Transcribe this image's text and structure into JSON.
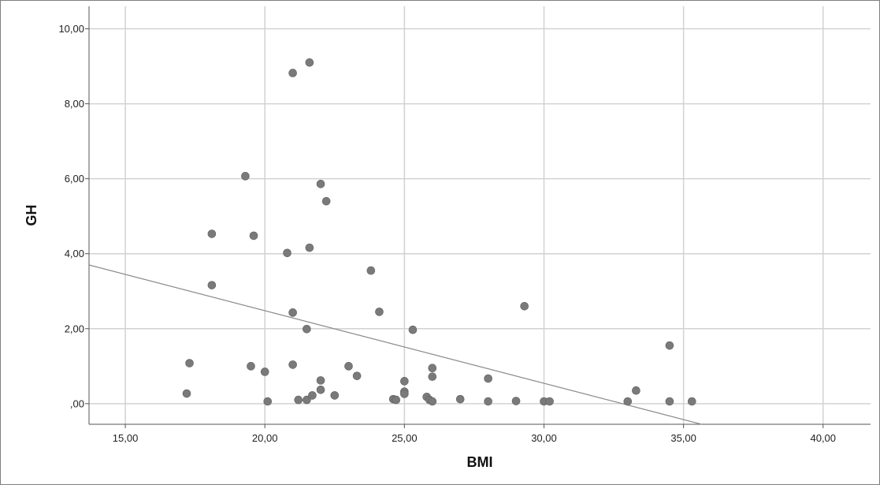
{
  "chart_data": {
    "type": "scatter",
    "title": "",
    "xlabel": "BMI",
    "ylabel": "GH",
    "xlim": [
      13.7,
      41.7
    ],
    "ylim": [
      -0.55,
      10.6
    ],
    "x_ticks": [
      15,
      20,
      25,
      30,
      35,
      40
    ],
    "y_ticks": [
      0,
      2,
      4,
      6,
      8,
      10
    ],
    "x_tick_labels": [
      "15,00",
      "20,00",
      "25,00",
      "30,00",
      "35,00",
      "40,00"
    ],
    "y_tick_labels": [
      ",00",
      "2,00",
      "4,00",
      "6,00",
      "8,00",
      "10,00"
    ],
    "grid": true,
    "point_color": "#7a7a7a",
    "line_color": "#8a8a8a",
    "fit_line": {
      "x": [
        13.7,
        35.65
      ],
      "y": [
        3.7,
        -0.55
      ]
    },
    "points": [
      {
        "x": 17.2,
        "y": 0.27
      },
      {
        "x": 17.3,
        "y": 1.08
      },
      {
        "x": 18.1,
        "y": 4.53
      },
      {
        "x": 18.1,
        "y": 3.16
      },
      {
        "x": 19.3,
        "y": 6.07
      },
      {
        "x": 19.5,
        "y": 1.0
      },
      {
        "x": 19.6,
        "y": 4.48
      },
      {
        "x": 20.0,
        "y": 0.85
      },
      {
        "x": 20.1,
        "y": 0.06
      },
      {
        "x": 20.8,
        "y": 4.02
      },
      {
        "x": 21.0,
        "y": 8.82
      },
      {
        "x": 21.0,
        "y": 2.43
      },
      {
        "x": 21.0,
        "y": 1.04
      },
      {
        "x": 21.2,
        "y": 0.1
      },
      {
        "x": 21.5,
        "y": 1.99
      },
      {
        "x": 21.5,
        "y": 0.1
      },
      {
        "x": 21.6,
        "y": 9.1
      },
      {
        "x": 21.6,
        "y": 4.16
      },
      {
        "x": 21.7,
        "y": 0.22
      },
      {
        "x": 22.0,
        "y": 5.86
      },
      {
        "x": 22.0,
        "y": 0.62
      },
      {
        "x": 22.0,
        "y": 0.37
      },
      {
        "x": 22.2,
        "y": 5.4
      },
      {
        "x": 22.5,
        "y": 0.22
      },
      {
        "x": 23.0,
        "y": 1.0
      },
      {
        "x": 23.3,
        "y": 0.74
      },
      {
        "x": 23.8,
        "y": 3.55
      },
      {
        "x": 24.1,
        "y": 2.45
      },
      {
        "x": 24.6,
        "y": 0.12
      },
      {
        "x": 24.7,
        "y": 0.1
      },
      {
        "x": 25.0,
        "y": 0.6
      },
      {
        "x": 25.0,
        "y": 0.32
      },
      {
        "x": 25.0,
        "y": 0.26
      },
      {
        "x": 25.3,
        "y": 1.97
      },
      {
        "x": 25.8,
        "y": 0.18
      },
      {
        "x": 25.9,
        "y": 0.1
      },
      {
        "x": 26.0,
        "y": 0.95
      },
      {
        "x": 26.0,
        "y": 0.72
      },
      {
        "x": 26.0,
        "y": 0.06
      },
      {
        "x": 27.0,
        "y": 0.12
      },
      {
        "x": 28.0,
        "y": 0.67
      },
      {
        "x": 28.0,
        "y": 0.06
      },
      {
        "x": 29.0,
        "y": 0.07
      },
      {
        "x": 29.3,
        "y": 2.6
      },
      {
        "x": 30.0,
        "y": 0.06
      },
      {
        "x": 30.2,
        "y": 0.06
      },
      {
        "x": 33.0,
        "y": 0.06
      },
      {
        "x": 33.3,
        "y": 0.35
      },
      {
        "x": 34.5,
        "y": 1.55
      },
      {
        "x": 34.5,
        "y": 0.06
      },
      {
        "x": 35.3,
        "y": 0.06
      }
    ]
  }
}
